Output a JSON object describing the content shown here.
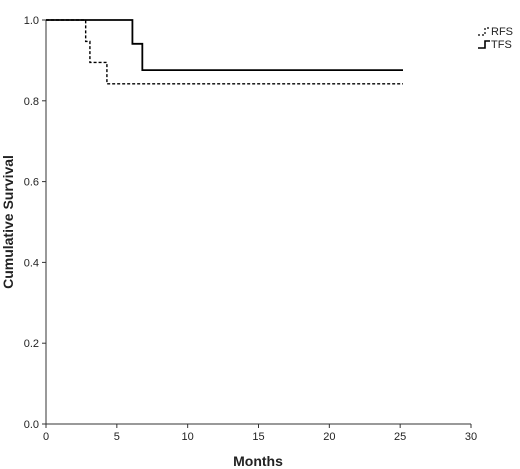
{
  "chart_data": {
    "type": "line",
    "title": "",
    "xlabel": "Months",
    "ylabel": "Cumulative Survival",
    "xlim": [
      0,
      30
    ],
    "ylim": [
      0,
      1.0
    ],
    "x_ticks": [
      0,
      5,
      10,
      15,
      20,
      25,
      30
    ],
    "y_ticks": [
      0.0,
      0.2,
      0.4,
      0.6,
      0.8,
      1.0
    ],
    "x_tick_labels": [
      "0",
      "5",
      "10",
      "15",
      "20",
      "25",
      "30"
    ],
    "y_tick_labels": [
      "0.0",
      "0.2",
      "0.4",
      "0.6",
      "0.8",
      "1.0"
    ],
    "grid": false,
    "legend_position": "top-right",
    "series": [
      {
        "name": "RFS",
        "style": "dashed",
        "color": "#000000",
        "steps": [
          [
            0,
            1.0
          ],
          [
            2.8,
            0.947
          ],
          [
            3.1,
            0.895
          ],
          [
            4.3,
            0.842
          ],
          [
            25.2,
            0.842
          ]
        ]
      },
      {
        "name": "TFS",
        "style": "solid",
        "color": "#000000",
        "steps": [
          [
            0,
            1.0
          ],
          [
            6.1,
            0.941
          ],
          [
            6.8,
            0.876
          ],
          [
            25.2,
            0.876
          ]
        ]
      }
    ]
  }
}
